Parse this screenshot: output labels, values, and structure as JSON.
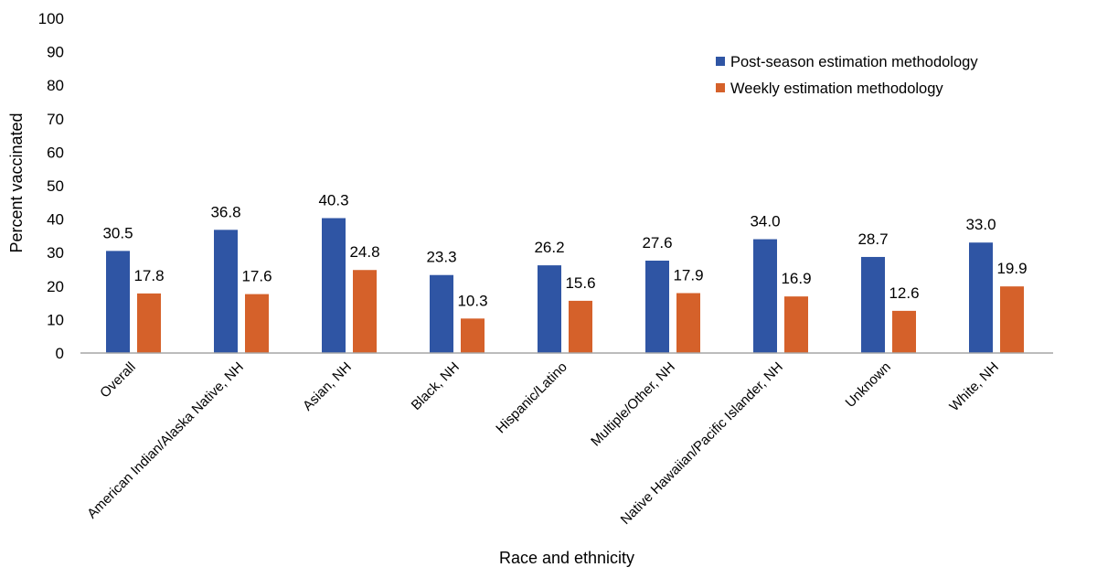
{
  "chart_data": {
    "type": "bar",
    "title": "",
    "xlabel": "Race and ethnicity",
    "ylabel": "Percent vaccinated",
    "ylim": [
      0,
      100
    ],
    "yticks": [
      0,
      10,
      20,
      30,
      40,
      50,
      60,
      70,
      80,
      90,
      100
    ],
    "grid": false,
    "legend_position": "top-right",
    "categories": [
      "Overall",
      "American Indian/Alaska Native, NH",
      "Asian, NH",
      "Black, NH",
      "Hispanic/Latino",
      "Multiple/Other, NH",
      "Native Hawaiian/Pacific Islander, NH",
      "Unknown",
      "White, NH"
    ],
    "series": [
      {
        "name": "Post-season estimation methodology",
        "color": "#2F55A4",
        "values": [
          30.5,
          36.8,
          40.3,
          23.3,
          26.2,
          27.6,
          34.0,
          28.7,
          33.0
        ]
      },
      {
        "name": "Weekly estimation methodology",
        "color": "#D5612A",
        "values": [
          17.8,
          17.6,
          24.8,
          10.3,
          15.6,
          17.9,
          16.9,
          12.6,
          19.9
        ]
      }
    ]
  }
}
